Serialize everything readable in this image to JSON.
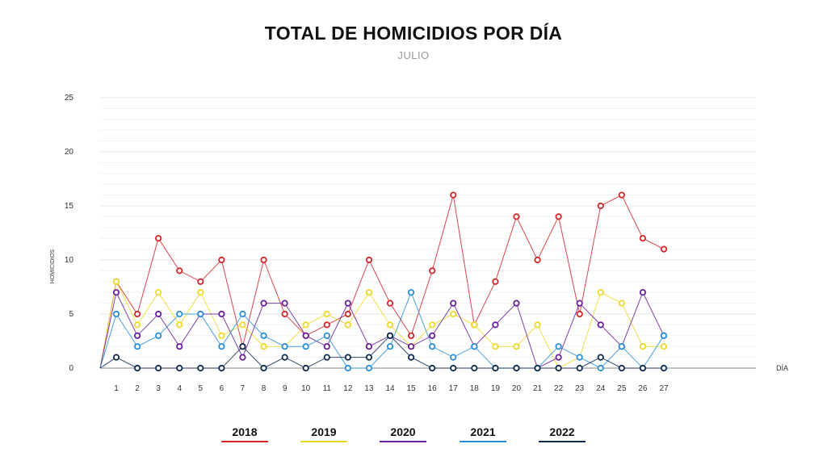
{
  "header": {
    "title": "TOTAL DE HOMICIDIOS POR DÍA",
    "subtitle": "JULIO"
  },
  "colors": {
    "2018": "#d6242a",
    "2019": "#ecd92a",
    "2020": "#6a1e9a",
    "2021": "#2b8fd6",
    "2022": "#0d2a4f"
  },
  "chart_data": {
    "type": "line",
    "title": "TOTAL DE HOMICIDIOS POR DÍA",
    "subtitle": "JULIO",
    "xlabel": "DÍA",
    "ylabel": "HOMICIDIOS",
    "x": [
      1,
      2,
      3,
      4,
      5,
      6,
      7,
      8,
      9,
      10,
      11,
      12,
      13,
      14,
      15,
      16,
      17,
      18,
      19,
      20,
      21,
      22,
      23,
      24,
      25,
      26,
      27
    ],
    "ylim": [
      0,
      25
    ],
    "yticks": [
      0,
      5,
      10,
      15,
      20,
      25
    ],
    "grid": true,
    "legend_position": "bottom",
    "series": [
      {
        "name": "2018",
        "values": [
          8,
          5,
          12,
          9,
          8,
          10,
          2,
          10,
          5,
          3,
          4,
          5,
          10,
          6,
          3,
          9,
          16,
          4,
          8,
          14,
          10,
          14,
          5,
          15,
          16,
          12,
          11
        ]
      },
      {
        "name": "2019",
        "values": [
          8,
          4,
          7,
          4,
          7,
          3,
          4,
          2,
          2,
          4,
          5,
          4,
          7,
          4,
          2,
          4,
          5,
          4,
          2,
          2,
          4,
          0,
          1,
          7,
          6,
          2,
          2
        ]
      },
      {
        "name": "2020",
        "values": [
          7,
          3,
          5,
          2,
          5,
          5,
          1,
          6,
          6,
          3,
          2,
          6,
          2,
          3,
          2,
          3,
          6,
          2,
          4,
          6,
          0,
          1,
          6,
          4,
          2,
          7,
          3
        ]
      },
      {
        "name": "2021",
        "values": [
          5,
          2,
          3,
          5,
          5,
          2,
          5,
          3,
          2,
          2,
          3,
          0,
          0,
          2,
          7,
          2,
          1,
          2,
          0,
          0,
          0,
          2,
          1,
          0,
          2,
          0,
          3
        ]
      },
      {
        "name": "2022",
        "values": [
          1,
          0,
          0,
          0,
          0,
          0,
          2,
          0,
          1,
          0,
          1,
          1,
          1,
          3,
          1,
          0,
          0,
          0,
          0,
          0,
          0,
          0,
          0,
          1,
          0,
          0,
          0
        ]
      }
    ]
  }
}
